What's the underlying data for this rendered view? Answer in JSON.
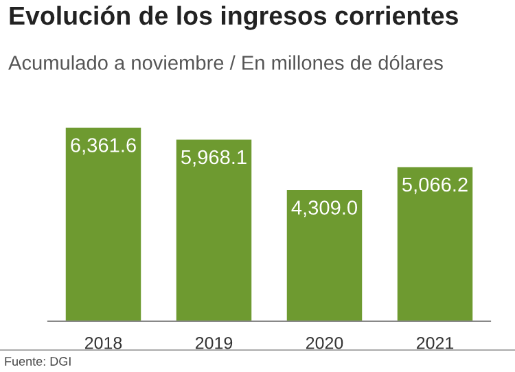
{
  "chart_data": {
    "type": "bar",
    "title": "Evolución de los ingresos corrientes",
    "subtitle": "Acumulado a noviembre / En millones de dólares",
    "categories": [
      "2018",
      "2019",
      "2020",
      "2021"
    ],
    "values": [
      6361.6,
      5968.1,
      4309.0,
      5066.2
    ],
    "value_labels": [
      "6,361.6",
      "5,968.1",
      "4,309.0",
      "5,066.2"
    ],
    "color": "#6e9a30",
    "grid": false,
    "legend": false,
    "annotations": [
      "Fuente: DGI"
    ]
  }
}
